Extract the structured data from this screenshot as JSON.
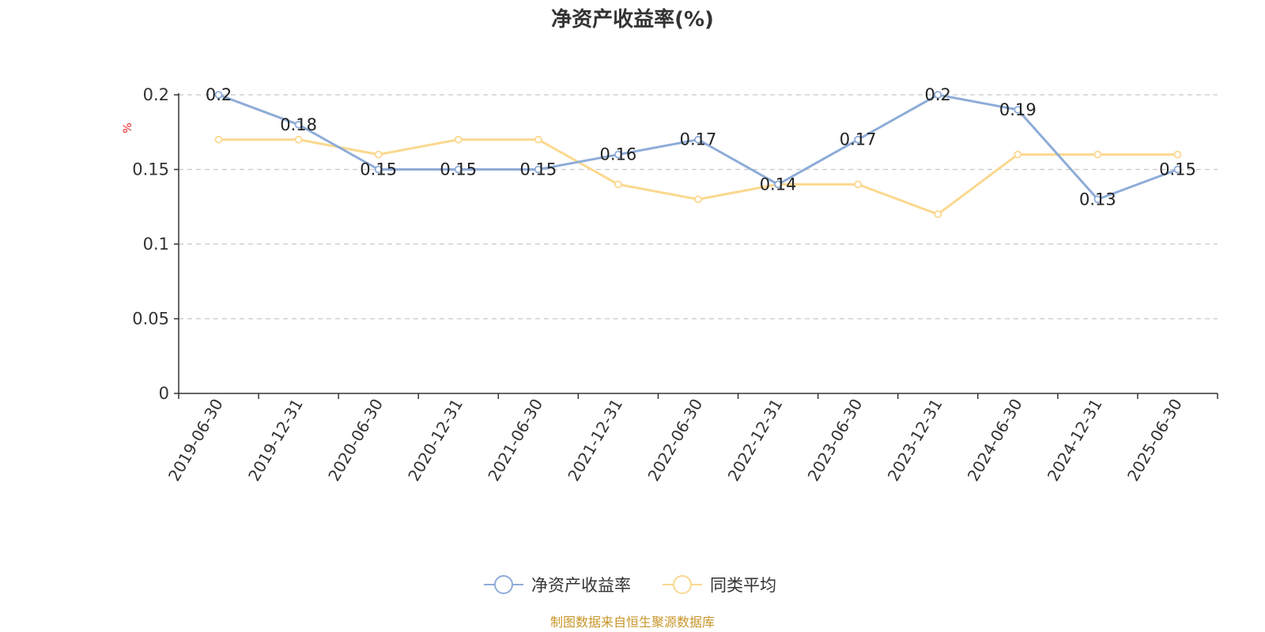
{
  "chart_data": {
    "type": "line",
    "title": "净资产收益率(%)",
    "ylabel": "%",
    "xlabel": "",
    "ylim": [
      0,
      0.2
    ],
    "y_ticks": [
      "0",
      "0.05",
      "0.1",
      "0.15",
      "0.2"
    ],
    "y_tick_values": [
      0,
      0.05,
      0.1,
      0.15,
      0.2
    ],
    "grid": true,
    "legend_position": "bottom-center",
    "categories": [
      "2019-06-30",
      "2019-12-31",
      "2020-06-30",
      "2020-12-31",
      "2021-06-30",
      "2021-12-31",
      "2022-06-30",
      "2022-12-31",
      "2023-06-30",
      "2023-12-31",
      "2024-06-30",
      "2024-12-31",
      "2025-06-30"
    ],
    "series": [
      {
        "name": "净资产收益率",
        "color": "#8eacd8",
        "values": [
          0.2,
          0.18,
          0.15,
          0.15,
          0.15,
          0.16,
          0.17,
          0.14,
          0.17,
          0.2,
          0.19,
          0.13,
          0.15
        ],
        "data_labels": [
          "0.2",
          "0.18",
          "0.15",
          "0.15",
          "0.15",
          "0.16",
          "0.17",
          "0.14",
          "0.17",
          "0.2",
          "0.19",
          "0.13",
          "0.15"
        ]
      },
      {
        "name": "同类平均",
        "color": "#fbd88f",
        "values": [
          0.17,
          0.17,
          0.16,
          0.17,
          0.17,
          0.14,
          0.13,
          0.14,
          0.14,
          0.12,
          0.16,
          0.16,
          0.16
        ]
      }
    ],
    "source": "制图数据来自恒生聚源数据库"
  }
}
